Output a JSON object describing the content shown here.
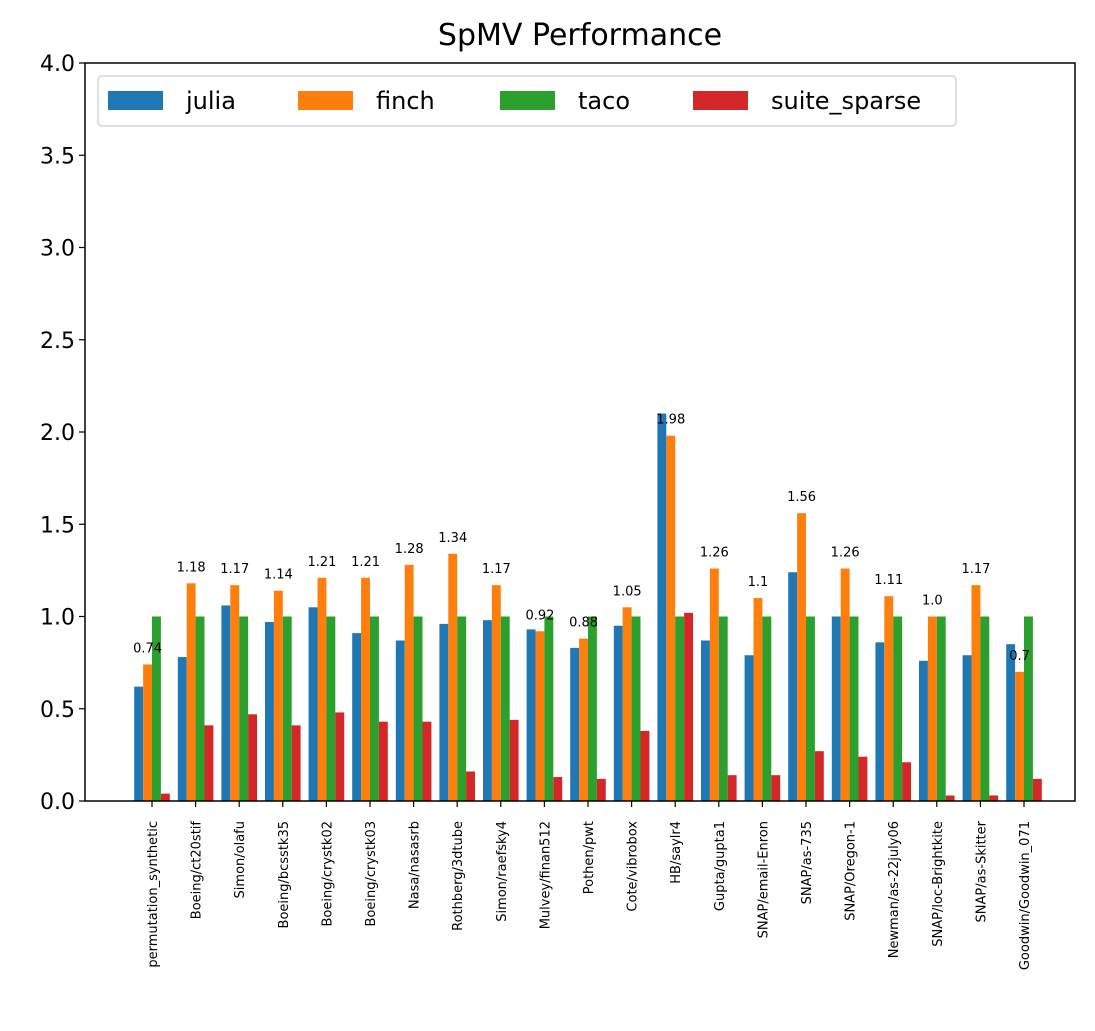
{
  "chart_data": {
    "type": "bar",
    "title": "SpMV Performance",
    "xlabel": "",
    "ylabel": "",
    "ylim": [
      0,
      4.0
    ],
    "yticks": [
      "0.0",
      "0.5",
      "1.0",
      "1.5",
      "2.0",
      "2.5",
      "3.0",
      "3.5",
      "4.0"
    ],
    "legend_position": "top-left",
    "grid": false,
    "categories": [
      "permutation_synthetic",
      "Boeing/ct20stif",
      "Simon/olafu",
      "Boeing/bcsstk35",
      "Boeing/crystk02",
      "Boeing/crystk03",
      "Nasa/nasasrb",
      "Rothberg/3dtube",
      "Simon/raefsky4",
      "Mulvey/finan512",
      "Pothen/pwt",
      "Cote/vibrobox",
      "HB/saylr4",
      "Gupta/gupta1",
      "SNAP/email-Enron",
      "SNAP/as-735",
      "SNAP/Oregon-1",
      "Newman/as-22july06",
      "SNAP/loc-Brightkite",
      "SNAP/as-Skitter",
      "Goodwin/Goodwin_071"
    ],
    "series": [
      {
        "name": "julia",
        "color": "#1f77b4",
        "values": [
          0.62,
          0.78,
          1.06,
          0.97,
          1.05,
          0.91,
          0.87,
          0.96,
          0.98,
          0.93,
          0.83,
          0.95,
          2.1,
          0.87,
          0.79,
          1.24,
          1.0,
          0.86,
          0.76,
          0.79,
          0.85
        ]
      },
      {
        "name": "finch",
        "color": "#ff7f0e",
        "values": [
          0.74,
          1.18,
          1.17,
          1.14,
          1.21,
          1.21,
          1.28,
          1.34,
          1.17,
          0.92,
          0.88,
          1.05,
          1.98,
          1.26,
          1.1,
          1.56,
          1.26,
          1.11,
          1.0,
          1.17,
          0.7
        ]
      },
      {
        "name": "taco",
        "color": "#2ca02c",
        "values": [
          1.0,
          1.0,
          1.0,
          1.0,
          1.0,
          1.0,
          1.0,
          1.0,
          1.0,
          1.0,
          1.0,
          1.0,
          1.0,
          1.0,
          1.0,
          1.0,
          1.0,
          1.0,
          1.0,
          1.0,
          1.0
        ]
      },
      {
        "name": "suite_sparse",
        "color": "#d62728",
        "values": [
          0.04,
          0.41,
          0.47,
          0.41,
          0.48,
          0.43,
          0.43,
          0.16,
          0.44,
          0.13,
          0.12,
          0.38,
          1.02,
          0.14,
          0.14,
          0.27,
          0.24,
          0.21,
          0.03,
          0.03,
          0.12
        ]
      }
    ],
    "data_labels": [
      "0.74",
      "1.18",
      "1.17",
      "1.14",
      "1.21",
      "1.21",
      "1.28",
      "1.34",
      "1.17",
      "0.92",
      "0.88",
      "1.05",
      "1.98",
      "1.26",
      "1.1",
      "1.56",
      "1.26",
      "1.11",
      "1.0",
      "1.17",
      "0.7"
    ],
    "data_label_series": "finch"
  }
}
